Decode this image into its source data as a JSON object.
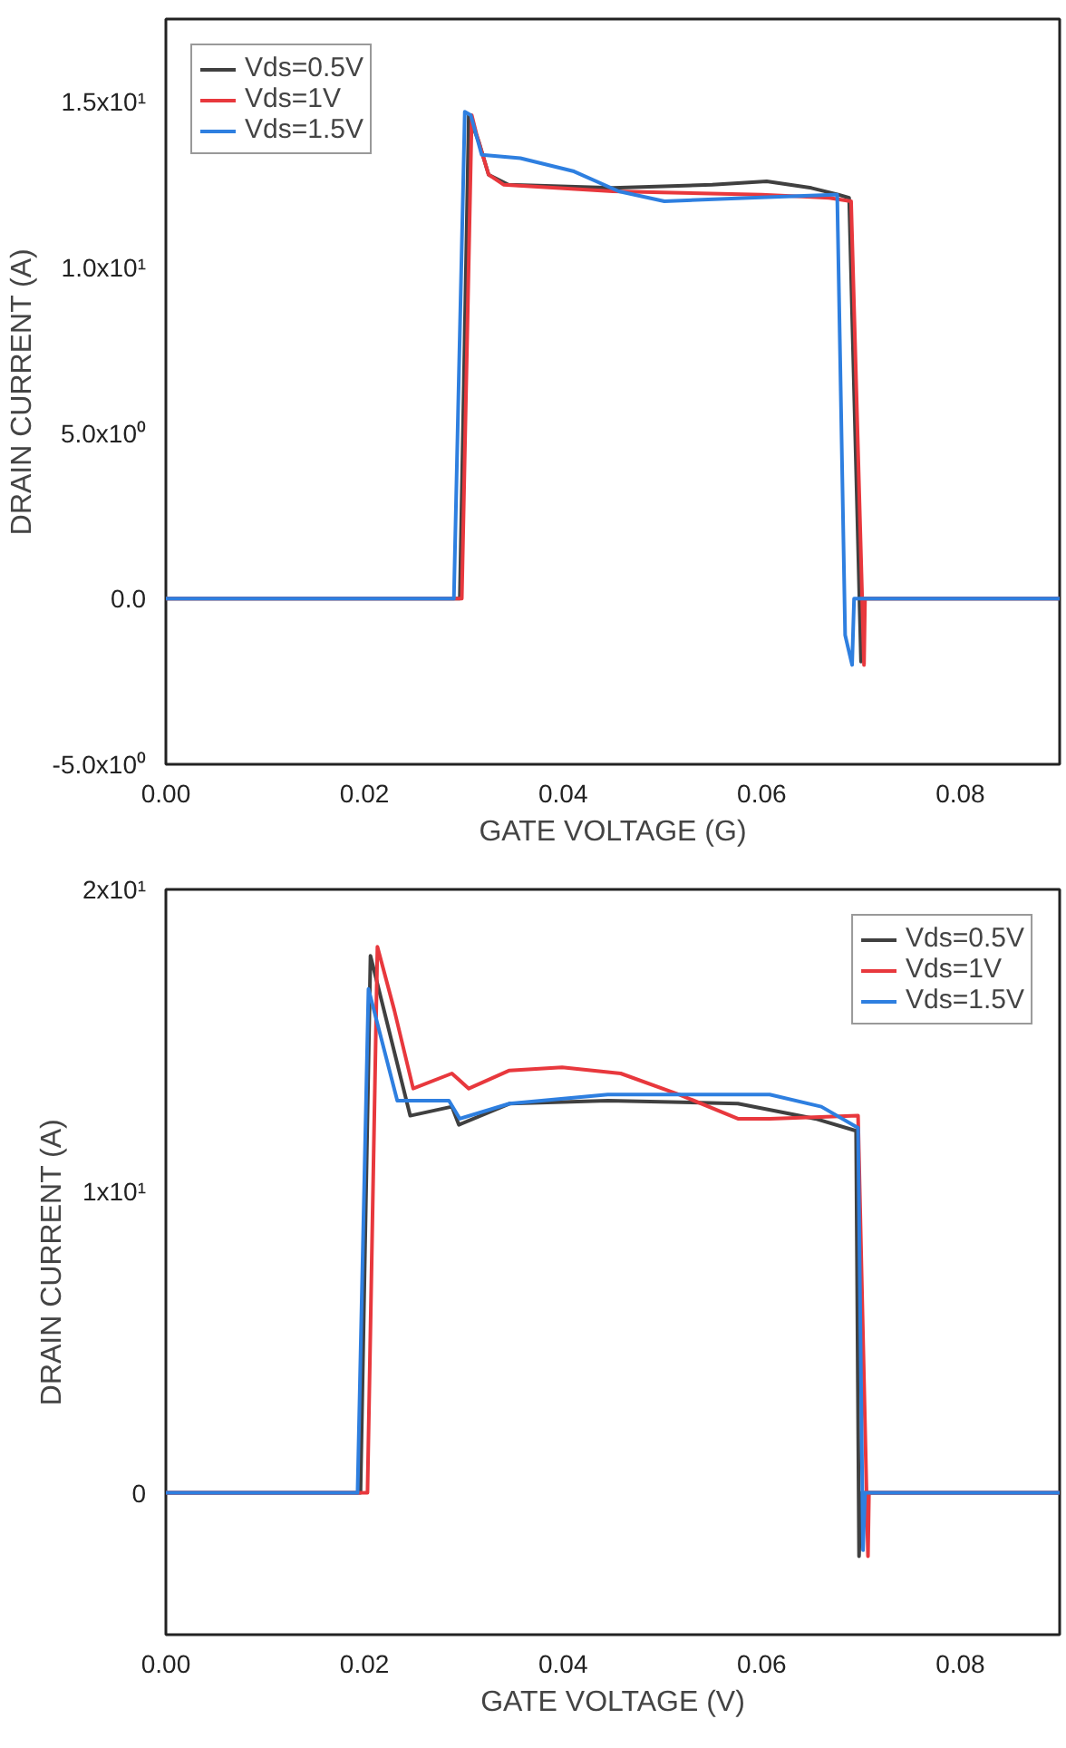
{
  "chart_data": [
    {
      "type": "line",
      "xlabel": "GATE VOLTAGE (G)",
      "ylabel": "DRAIN CURRENT (A)",
      "xlim": [
        0,
        0.09
      ],
      "ylim": [
        -5,
        17.5
      ],
      "xticks": [
        {
          "value": 0,
          "label": "0.00"
        },
        {
          "value": 0.02,
          "label": "0.02"
        },
        {
          "value": 0.04,
          "label": "0.04"
        },
        {
          "value": 0.06,
          "label": "0.06"
        },
        {
          "value": 0.08,
          "label": "0.08"
        }
      ],
      "yticks": [
        {
          "value": -5,
          "label": "-5.0x10⁰"
        },
        {
          "value": 0,
          "label": "0.0"
        },
        {
          "value": 5,
          "label": "5.0x10⁰"
        },
        {
          "value": 10,
          "label": "1.0x10¹"
        },
        {
          "value": 15,
          "label": "1.5x10¹"
        }
      ],
      "grid": false,
      "legend": "top left",
      "series": [
        {
          "name": "Vds=0.5V",
          "color": "#404040",
          "x": [
            0,
            0.0296,
            0.0305,
            0.0315,
            0.0325,
            0.0345,
            0.045,
            0.055,
            0.0605,
            0.065,
            0.0677,
            0.0688,
            0.07,
            0.0701,
            0.09
          ],
          "values": [
            0,
            0,
            14.6,
            13.8,
            12.8,
            12.5,
            12.4,
            12.5,
            12.6,
            12.4,
            12.2,
            12.1,
            -1.9,
            0,
            0
          ]
        },
        {
          "name": "Vds=1V",
          "color": "#e8383d",
          "x": [
            0,
            0.0298,
            0.0308,
            0.0313,
            0.0325,
            0.034,
            0.045,
            0.06,
            0.0668,
            0.069,
            0.0703,
            0.0704,
            0.09
          ],
          "values": [
            0,
            0,
            14.6,
            14.0,
            12.8,
            12.5,
            12.3,
            12.2,
            12.1,
            12.0,
            -2.0,
            0,
            0
          ]
        },
        {
          "name": "Vds=1.5V",
          "color": "#2e7fe0",
          "x": [
            0,
            0.029,
            0.0301,
            0.0307,
            0.0318,
            0.0357,
            0.0411,
            0.0456,
            0.0502,
            0.0587,
            0.0673,
            0.0676,
            0.0684,
            0.0691,
            0.0693,
            0.09
          ],
          "values": [
            0,
            0,
            14.7,
            14.6,
            13.4,
            13.3,
            12.9,
            12.3,
            12.0,
            12.1,
            12.2,
            12.2,
            -1.1,
            -2.0,
            0,
            0
          ]
        }
      ]
    },
    {
      "type": "line",
      "xlabel": "GATE VOLTAGE (V)",
      "ylabel": "DRAIN CURRENT (A)",
      "xlim": [
        0,
        0.09
      ],
      "ylim": [
        -4.7,
        20
      ],
      "xticks": [
        {
          "value": 0,
          "label": "0.00"
        },
        {
          "value": 0.02,
          "label": "0.02"
        },
        {
          "value": 0.04,
          "label": "0.04"
        },
        {
          "value": 0.06,
          "label": "0.06"
        },
        {
          "value": 0.08,
          "label": "0.08"
        }
      ],
      "yticks": [
        0,
        {
          "value": 10,
          "label": "1x10¹"
        },
        {
          "value": 20,
          "label": "2x10¹"
        }
      ],
      "grid": false,
      "legend": "top right",
      "series": [
        {
          "name": "Vds=0.5V",
          "color": "#404040",
          "x": [
            0,
            0.0196,
            0.0206,
            0.0246,
            0.0288,
            0.0295,
            0.0346,
            0.0445,
            0.0576,
            0.0654,
            0.0695,
            0.0698,
            0.07,
            0.09
          ],
          "values": [
            0,
            0,
            17.8,
            12.5,
            12.8,
            12.2,
            12.9,
            13.0,
            12.9,
            12.4,
            12.0,
            -2.1,
            0,
            0
          ]
        },
        {
          "name": "Vds=1V",
          "color": "#e8383d",
          "x": [
            0,
            0.0203,
            0.0213,
            0.023,
            0.0249,
            0.0288,
            0.0305,
            0.0346,
            0.0399,
            0.0458,
            0.0517,
            0.0576,
            0.0608,
            0.0697,
            0.0707,
            0.0708,
            0.09
          ],
          "values": [
            0,
            0,
            18.1,
            16.0,
            13.4,
            13.9,
            13.4,
            14.0,
            14.1,
            13.9,
            13.2,
            12.4,
            12.4,
            12.5,
            -2.1,
            0,
            0
          ]
        },
        {
          "name": "Vds=1.5V",
          "color": "#2e7fe0",
          "x": [
            0,
            0.0193,
            0.0204,
            0.0233,
            0.0285,
            0.0296,
            0.0346,
            0.0445,
            0.0608,
            0.066,
            0.0697,
            0.0702,
            0.0704,
            0.09
          ],
          "values": [
            0,
            0,
            16.7,
            13.0,
            13.0,
            12.4,
            12.9,
            13.2,
            13.2,
            12.8,
            12.1,
            -1.9,
            0,
            0
          ]
        }
      ]
    }
  ]
}
